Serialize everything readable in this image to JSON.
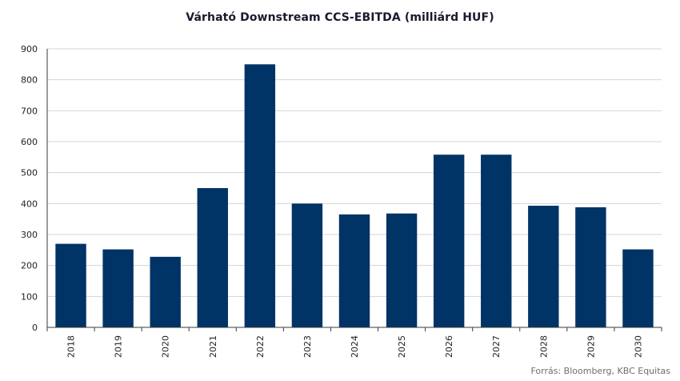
{
  "chart_data": {
    "type": "bar",
    "title": "Várható Downstream CCS-EBITDA (milliárd HUF)",
    "xlabel": "",
    "ylabel": "",
    "categories": [
      "2018",
      "2019",
      "2020",
      "2021",
      "2022",
      "2023",
      "2024",
      "2025",
      "2026",
      "2027",
      "2028",
      "2029",
      "2030"
    ],
    "values": [
      270,
      252,
      228,
      450,
      850,
      400,
      365,
      368,
      558,
      558,
      393,
      388,
      252
    ],
    "ylim": [
      0,
      900
    ],
    "yticks": [
      0,
      100,
      200,
      300,
      400,
      500,
      600,
      700,
      800,
      900
    ],
    "grid": true,
    "legend": "none",
    "bar_color": "#003366",
    "source": "Forrás: Bloomberg,  KBC Equitas"
  }
}
